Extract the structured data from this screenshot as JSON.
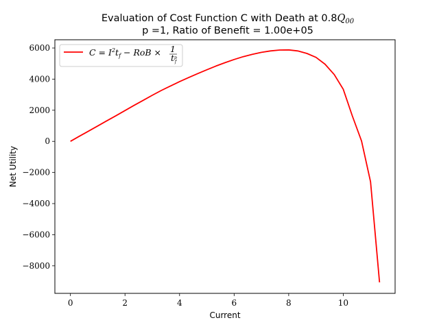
{
  "chart_data": {
    "type": "line",
    "title_line1": "Evaluation of Cost Function C with Death at 0.8",
    "title_line1_math": "Q",
    "title_line1_math_sub": "00",
    "title_line2": "p =1, Ratio of Benefit = 1.00e+05",
    "xlabel": "Current",
    "ylabel": "Net Utility",
    "xlim": [
      -0.57,
      11.9
    ],
    "ylim": [
      -9770,
      6530
    ],
    "x_ticks": [
      0,
      2,
      4,
      6,
      8,
      10
    ],
    "y_ticks": [
      -8000,
      -6000,
      -4000,
      -2000,
      0,
      2000,
      4000,
      6000
    ],
    "x_tick_labels": [
      "0",
      "2",
      "4",
      "6",
      "8",
      "10"
    ],
    "y_tick_labels": [
      "−8000",
      "−6000",
      "−4000",
      "−2000",
      "0",
      "2000",
      "4000",
      "6000"
    ],
    "grid": false,
    "legend_position": "upper-left",
    "series": [
      {
        "name": "C = I²t_f − RoB × 1/t_f^p",
        "color": "#ff0000",
        "x": [
          0,
          0.33,
          0.67,
          1.0,
          1.33,
          1.67,
          2.0,
          2.33,
          2.67,
          3.0,
          3.33,
          3.67,
          4.0,
          4.33,
          4.67,
          5.0,
          5.33,
          5.67,
          6.0,
          6.33,
          6.67,
          7.0,
          7.33,
          7.67,
          8.0,
          8.33,
          8.67,
          9.0,
          9.33,
          9.67,
          10.0,
          10.33,
          10.67,
          11.0,
          11.33
        ],
        "y": [
          0,
          330,
          660,
          990,
          1320,
          1650,
          1980,
          2310,
          2640,
          2960,
          3270,
          3560,
          3840,
          4100,
          4360,
          4600,
          4840,
          5060,
          5260,
          5440,
          5590,
          5720,
          5810,
          5870,
          5880,
          5810,
          5650,
          5400,
          4960,
          4290,
          3350,
          1640,
          20,
          -2600,
          -9060
        ]
      }
    ]
  },
  "legend": {
    "label_main": "C = I",
    "label_sup": "2",
    "label_t": "t",
    "label_sub_f": "f",
    "label_rest": " − RoB × ",
    "label_frac_num": "1",
    "label_frac_den": "t",
    "label_frac_den_sup": "p",
    "label_frac_den_sub": "f"
  }
}
